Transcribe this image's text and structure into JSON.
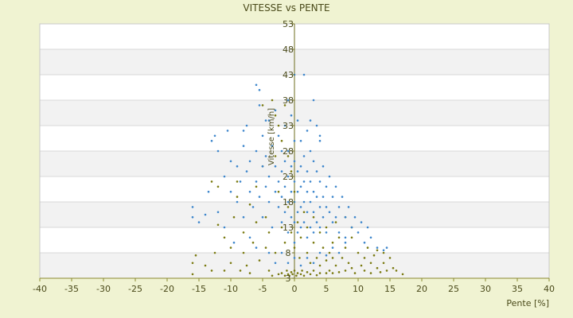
{
  "chart_data": {
    "type": "scatter",
    "title": "VITESSE vs PENTE",
    "xlabel": "Pente [%]",
    "ylabel": "Vitesse [km/h]",
    "xlim": [
      -40,
      40
    ],
    "ylim": [
      3,
      53
    ],
    "x_ticks": [
      "-40",
      "-35",
      "-30",
      "-25",
      "-20",
      "-15",
      "-10",
      "-5",
      "0",
      "5",
      "10",
      "15",
      "20",
      "25",
      "30",
      "35",
      "40"
    ],
    "y_ticks": [
      "3",
      "8",
      "13",
      "18",
      "23",
      "28",
      "33",
      "38",
      "43",
      "48",
      "53"
    ],
    "grid": true,
    "band_colors": [
      "#ffffff",
      "#f2f2f2"
    ],
    "series": [
      {
        "color": "#7a7a10",
        "points": [
          [
            -16,
            6
          ],
          [
            -16,
            3.8
          ],
          [
            -15.5,
            7.5
          ],
          [
            -14,
            5.5
          ],
          [
            -13,
            4.5
          ],
          [
            -12.5,
            8
          ],
          [
            -12,
            13.5
          ],
          [
            -12,
            21
          ],
          [
            -11,
            11
          ],
          [
            -11,
            4.5
          ],
          [
            -10,
            9
          ],
          [
            -10,
            6
          ],
          [
            -9.5,
            15
          ],
          [
            -9,
            19
          ],
          [
            -8.5,
            4.5
          ],
          [
            -8,
            8
          ],
          [
            -8,
            12
          ],
          [
            -7.5,
            5.5
          ],
          [
            -7,
            17.5
          ],
          [
            -7,
            4
          ],
          [
            -6.5,
            10
          ],
          [
            -6,
            14
          ],
          [
            -6,
            21
          ],
          [
            -5.5,
            6.5
          ],
          [
            -5,
            37
          ],
          [
            -5,
            25
          ],
          [
            -4.5,
            9
          ],
          [
            -4.5,
            15
          ],
          [
            -4,
            4.5
          ],
          [
            -4,
            12
          ],
          [
            -3.5,
            38
          ],
          [
            -3.5,
            3.5
          ],
          [
            -3,
            35
          ],
          [
            -3,
            8
          ],
          [
            -3,
            27
          ],
          [
            -2.5,
            33
          ],
          [
            -2.5,
            3.8
          ],
          [
            -2.5,
            20
          ],
          [
            -2,
            30
          ],
          [
            -2,
            4
          ],
          [
            -2,
            13
          ],
          [
            -1.5,
            37
          ],
          [
            -1.5,
            3.5
          ],
          [
            -1.5,
            10
          ],
          [
            -1.2,
            4.5
          ],
          [
            -1,
            27
          ],
          [
            -1,
            3.8
          ],
          [
            -1,
            17
          ],
          [
            -0.8,
            3.5
          ],
          [
            -0.5,
            24
          ],
          [
            -0.5,
            4.2
          ],
          [
            -0.5,
            12
          ],
          [
            -0.3,
            3.8
          ],
          [
            0,
            20
          ],
          [
            0,
            4.5
          ],
          [
            0,
            9
          ],
          [
            0.3,
            3.5
          ],
          [
            0.5,
            14
          ],
          [
            0.5,
            4
          ],
          [
            0.8,
            7
          ],
          [
            1,
            3.8
          ],
          [
            1,
            11
          ],
          [
            1.2,
            4.5
          ],
          [
            1.5,
            16
          ],
          [
            1.5,
            3.5
          ],
          [
            2,
            8
          ],
          [
            2,
            13
          ],
          [
            2,
            4.2
          ],
          [
            2.5,
            6
          ],
          [
            2.5,
            3.8
          ],
          [
            3,
            10
          ],
          [
            3,
            4.5
          ],
          [
            3,
            15
          ],
          [
            3.5,
            7
          ],
          [
            3.5,
            3.6
          ],
          [
            4,
            12
          ],
          [
            4,
            4
          ],
          [
            4,
            5.5
          ],
          [
            4.5,
            9
          ],
          [
            5,
            6.5
          ],
          [
            5,
            4
          ],
          [
            5,
            13
          ],
          [
            5.5,
            8
          ],
          [
            5.5,
            4.5
          ],
          [
            6,
            10
          ],
          [
            6,
            4
          ],
          [
            6,
            7
          ],
          [
            6.5,
            5.5
          ],
          [
            7,
            11
          ],
          [
            7,
            4.2
          ],
          [
            7.5,
            7
          ],
          [
            8,
            4.5
          ],
          [
            8,
            9
          ],
          [
            8.5,
            6
          ],
          [
            9,
            5
          ],
          [
            9,
            11
          ],
          [
            9.5,
            4
          ],
          [
            10,
            8
          ],
          [
            10.5,
            5.5
          ],
          [
            11,
            7
          ],
          [
            11,
            4.5
          ],
          [
            11.5,
            9
          ],
          [
            12,
            6
          ],
          [
            12,
            4
          ],
          [
            12.5,
            7.5
          ],
          [
            13,
            5
          ],
          [
            13,
            8.5
          ],
          [
            13.5,
            4.2
          ],
          [
            14,
            6
          ],
          [
            14,
            8
          ],
          [
            14.5,
            4.5
          ],
          [
            15,
            7
          ],
          [
            15.5,
            5
          ],
          [
            16,
            4.5
          ],
          [
            17,
            3.8
          ],
          [
            9,
            13
          ],
          [
            8,
            15
          ],
          [
            6.5,
            14
          ],
          [
            -9,
            22
          ],
          [
            -13,
            22
          ]
        ]
      },
      {
        "color": "#3d86cc",
        "points": [
          [
            -16,
            17
          ],
          [
            -14,
            15.5
          ],
          [
            -13,
            30
          ],
          [
            -12.5,
            31
          ],
          [
            -12,
            28
          ],
          [
            -11,
            23
          ],
          [
            -10.5,
            32
          ],
          [
            -10,
            26
          ],
          [
            -10,
            20
          ],
          [
            -9,
            25
          ],
          [
            -9,
            18
          ],
          [
            -8.5,
            22
          ],
          [
            -8,
            29
          ],
          [
            -8,
            15
          ],
          [
            -7.5,
            24
          ],
          [
            -7,
            20
          ],
          [
            -7,
            26
          ],
          [
            -6.5,
            17
          ],
          [
            -6,
            41
          ],
          [
            -6,
            28
          ],
          [
            -6,
            22
          ],
          [
            -5.5,
            40
          ],
          [
            -5.5,
            19
          ],
          [
            -5,
            31
          ],
          [
            -5,
            25
          ],
          [
            -5,
            15
          ],
          [
            -4.5,
            27
          ],
          [
            -4.5,
            21
          ],
          [
            -4,
            34
          ],
          [
            -4,
            23
          ],
          [
            -4,
            18
          ],
          [
            -3.5,
            29
          ],
          [
            -3.5,
            13
          ],
          [
            -3,
            36
          ],
          [
            -3,
            25
          ],
          [
            -3,
            20
          ],
          [
            -2.5,
            31
          ],
          [
            -2.5,
            22
          ],
          [
            -2.5,
            17
          ],
          [
            -2,
            28
          ],
          [
            -2,
            24
          ],
          [
            -2,
            19
          ],
          [
            -2,
            14
          ],
          [
            -1.5,
            33
          ],
          [
            -1.5,
            26
          ],
          [
            -1.5,
            21
          ],
          [
            -1.5,
            16
          ],
          [
            -1,
            38
          ],
          [
            -1,
            28
          ],
          [
            -1,
            23
          ],
          [
            -1,
            18
          ],
          [
            -1,
            12
          ],
          [
            -0.5,
            35
          ],
          [
            -0.5,
            25
          ],
          [
            -0.5,
            20
          ],
          [
            -0.5,
            15
          ],
          [
            0,
            43
          ],
          [
            0,
            30
          ],
          [
            0,
            26
          ],
          [
            0,
            22
          ],
          [
            0,
            18
          ],
          [
            0,
            14
          ],
          [
            0,
            10
          ],
          [
            0.5,
            34
          ],
          [
            0.5,
            24
          ],
          [
            0.5,
            20
          ],
          [
            0.5,
            16
          ],
          [
            0.5,
            12
          ],
          [
            1,
            30
          ],
          [
            1,
            25
          ],
          [
            1,
            21
          ],
          [
            1,
            17
          ],
          [
            1,
            13
          ],
          [
            1.5,
            43
          ],
          [
            1.5,
            27
          ],
          [
            1.5,
            22
          ],
          [
            1.5,
            18
          ],
          [
            1.5,
            14
          ],
          [
            2,
            32
          ],
          [
            2,
            24
          ],
          [
            2,
            20
          ],
          [
            2,
            16
          ],
          [
            2,
            11
          ],
          [
            2.5,
            28
          ],
          [
            2.5,
            22
          ],
          [
            2.5,
            18
          ],
          [
            2.5,
            13
          ],
          [
            3,
            38
          ],
          [
            3,
            26
          ],
          [
            3,
            20
          ],
          [
            3,
            16
          ],
          [
            3,
            12
          ],
          [
            3.5,
            24
          ],
          [
            3.5,
            19
          ],
          [
            3.5,
            14
          ],
          [
            4,
            30
          ],
          [
            4,
            22
          ],
          [
            4,
            17
          ],
          [
            4,
            13
          ],
          [
            4.5,
            25
          ],
          [
            4.5,
            19
          ],
          [
            4.5,
            15
          ],
          [
            5,
            21
          ],
          [
            5,
            17
          ],
          [
            5,
            12
          ],
          [
            5.5,
            23
          ],
          [
            5.5,
            16
          ],
          [
            6,
            19
          ],
          [
            6,
            14
          ],
          [
            6.5,
            21
          ],
          [
            6.5,
            15
          ],
          [
            7,
            17
          ],
          [
            7,
            12
          ],
          [
            7.5,
            19
          ],
          [
            8,
            15
          ],
          [
            8,
            11
          ],
          [
            8.5,
            17
          ],
          [
            9,
            13
          ],
          [
            9.5,
            15
          ],
          [
            10,
            12
          ],
          [
            10.5,
            14
          ],
          [
            11,
            10
          ],
          [
            11.5,
            13
          ],
          [
            12,
            11
          ],
          [
            13,
            9
          ],
          [
            14,
            8.5
          ],
          [
            14.5,
            9
          ],
          [
            -15,
            14
          ],
          [
            -16,
            15
          ],
          [
            -9.5,
            10
          ],
          [
            -7,
            11
          ],
          [
            -6,
            9
          ],
          [
            -4,
            8
          ],
          [
            -3,
            6
          ],
          [
            -2,
            8
          ],
          [
            -1,
            6
          ],
          [
            0,
            7
          ],
          [
            1,
            5.5
          ],
          [
            2,
            7
          ],
          [
            3,
            6
          ],
          [
            4,
            8
          ],
          [
            5,
            7.5
          ],
          [
            6,
            9
          ],
          [
            7,
            8
          ],
          [
            8,
            10
          ],
          [
            -8,
            32
          ],
          [
            -7.5,
            33
          ],
          [
            -5.5,
            37
          ],
          [
            -4.5,
            34
          ],
          [
            2.5,
            34
          ],
          [
            3.5,
            33
          ],
          [
            4,
            31
          ],
          [
            -11,
            13
          ],
          [
            -12,
            16
          ],
          [
            -13.5,
            20
          ]
        ]
      }
    ]
  }
}
